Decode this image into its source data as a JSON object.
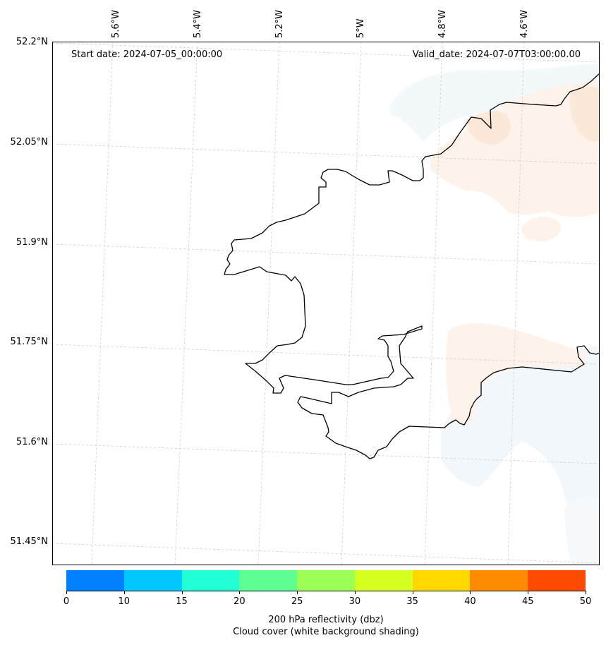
{
  "header": {
    "start_date": "Start date: 2024-07-05_00:00:00",
    "valid_date": "Valid_date: 2024-07-07T03:00:00.00"
  },
  "longitude_labels": [
    "5.6°W",
    "5.4°W",
    "5.2°W",
    "5°W",
    "4.8°W",
    "4.6°W"
  ],
  "latitude_labels": [
    "52.2°N",
    "52.05°N",
    "51.9°N",
    "51.75°N",
    "51.6°N",
    "51.45°N"
  ],
  "colorbar": {
    "colors": [
      "#0080ff",
      "#00c8ff",
      "#22ffd5",
      "#5dff92",
      "#9bff58",
      "#d6ff22",
      "#ffd800",
      "#ff8c00",
      "#ff4a00"
    ],
    "tick_labels": [
      "0",
      "10",
      "15",
      "20",
      "25",
      "30",
      "35",
      "40",
      "45",
      "50"
    ],
    "label_line1": "200 hPa reflectivity (dbz)",
    "label_line2": "Cloud cover (white background shading)"
  },
  "map_colors": {
    "coastline": "#000000",
    "gridline": "#cccccc",
    "light_cloud": "#f3f8fb",
    "light_orange": "#fdf3ea",
    "orange": "#fbe7d6"
  }
}
